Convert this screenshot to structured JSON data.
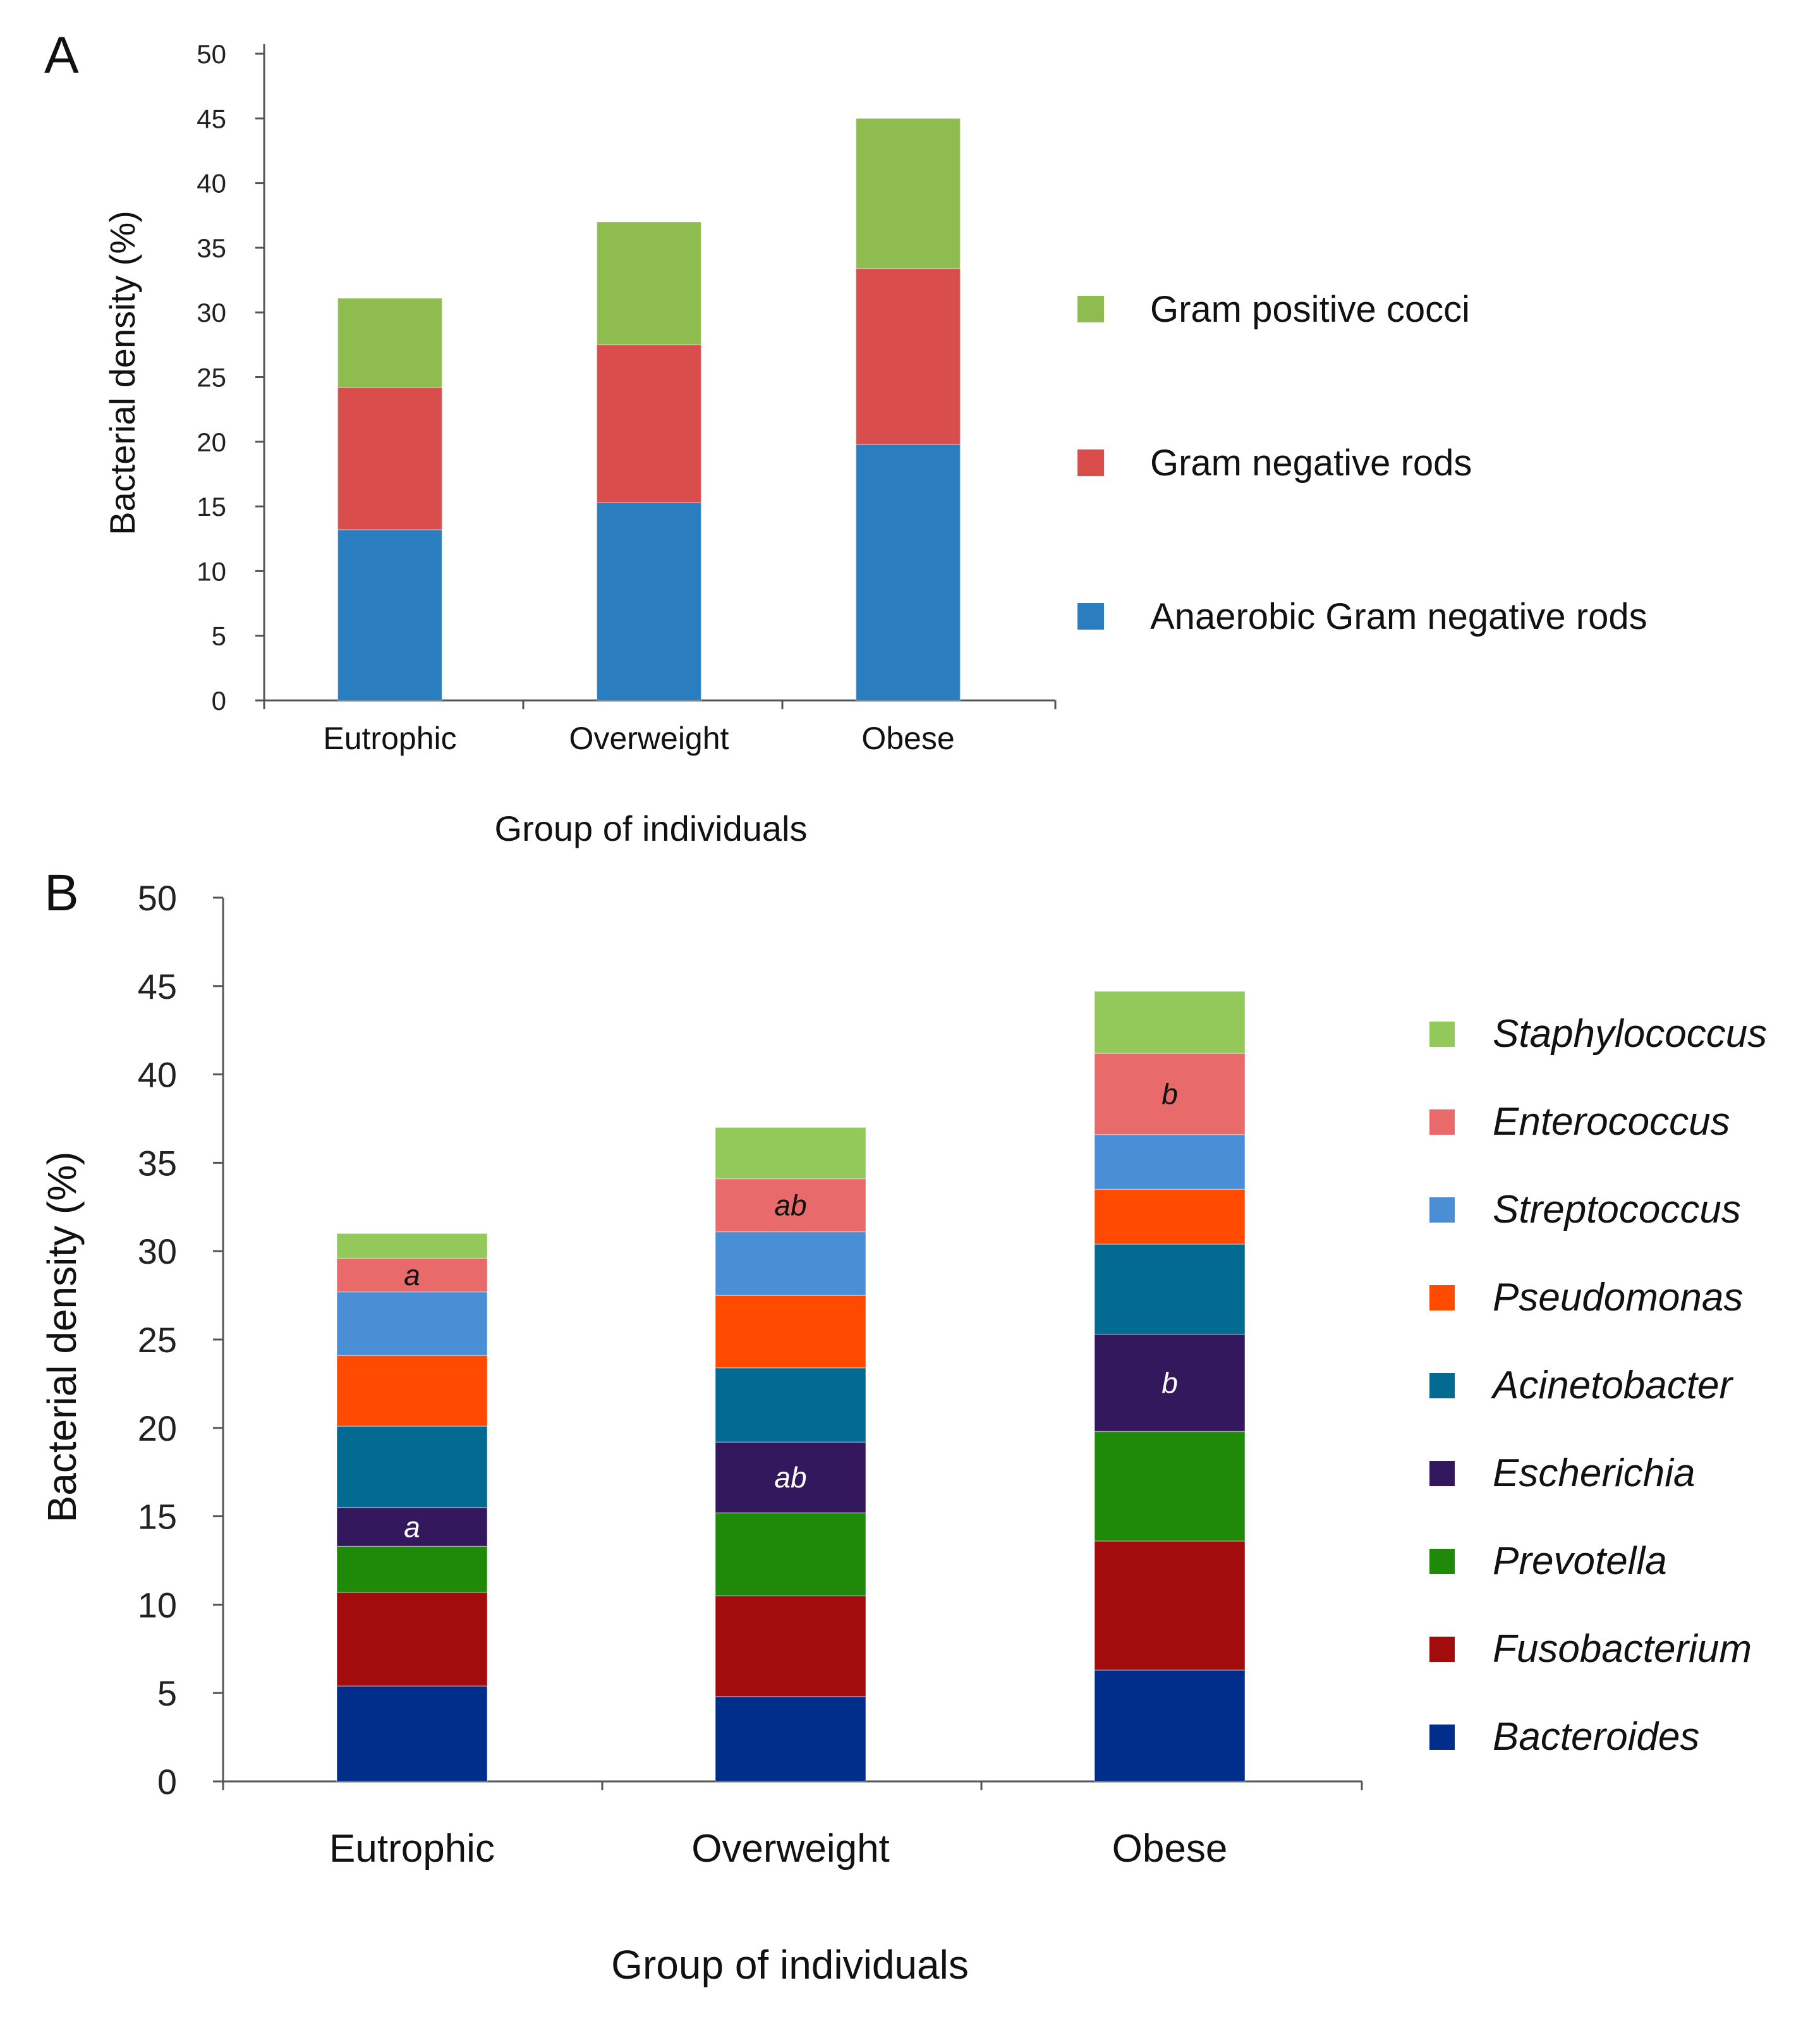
{
  "chart_data": [
    {
      "panel": "A",
      "type": "bar",
      "stacked": true,
      "categories": [
        "Eutrophic",
        "Overweight",
        "Obese"
      ],
      "xlabel": "Group of individuals",
      "ylabel": "Bacterial density (%)",
      "ylim": [
        0,
        50
      ],
      "yticks": [
        0,
        5,
        10,
        15,
        20,
        25,
        30,
        35,
        40,
        45,
        50
      ],
      "legend_position": "right",
      "series": [
        {
          "name": "Anaerobic Gram negative rods",
          "color": "#2a7ec0",
          "values": [
            13.2,
            15.3,
            19.8
          ]
        },
        {
          "name": "Gram negative rods",
          "color": "#d94d4d",
          "values": [
            11.0,
            12.2,
            13.6
          ]
        },
        {
          "name": "Gram positive cocci",
          "color": "#8ebc4f",
          "values": [
            6.9,
            9.5,
            11.6
          ]
        }
      ]
    },
    {
      "panel": "B",
      "type": "bar",
      "stacked": true,
      "categories": [
        "Eutrophic",
        "Overweight",
        "Obese"
      ],
      "xlabel": "Group of individuals",
      "ylabel": "Bacterial density (%)",
      "ylim": [
        0,
        50
      ],
      "yticks": [
        0,
        5,
        10,
        15,
        20,
        25,
        30,
        35,
        40,
        45,
        50
      ],
      "legend_position": "right",
      "series": [
        {
          "name": "Bacteroides",
          "color": "#002e8a",
          "values": [
            5.4,
            4.8,
            6.3
          ]
        },
        {
          "name": "Fusobacterium",
          "color": "#a30c0c",
          "values": [
            5.3,
            5.7,
            7.3
          ]
        },
        {
          "name": "Prevotella",
          "color": "#1f8a0a",
          "values": [
            2.6,
            4.7,
            6.2
          ]
        },
        {
          "name": "Escherichia",
          "color": "#33185e",
          "values": [
            2.2,
            4.0,
            5.5
          ]
        },
        {
          "name": "Acinetobacter",
          "color": "#036b91",
          "values": [
            4.6,
            4.2,
            5.1
          ]
        },
        {
          "name": "Pseudomonas",
          "color": "#ff4a00",
          "values": [
            4.0,
            4.1,
            3.1
          ]
        },
        {
          "name": "Streptococcus",
          "color": "#4a8fd6",
          "values": [
            3.6,
            3.6,
            3.1
          ]
        },
        {
          "name": "Enterococcus",
          "color": "#e86a6a",
          "values": [
            1.9,
            3.0,
            4.6
          ]
        },
        {
          "name": "Staphylococcus",
          "color": "#93c85a",
          "values": [
            1.4,
            2.9,
            3.5
          ]
        }
      ],
      "annotations": [
        {
          "series": "Escherichia",
          "labels": [
            "a",
            "ab",
            "b"
          ]
        },
        {
          "series": "Enterococcus",
          "labels": [
            "a",
            "ab",
            "b"
          ]
        }
      ]
    }
  ]
}
